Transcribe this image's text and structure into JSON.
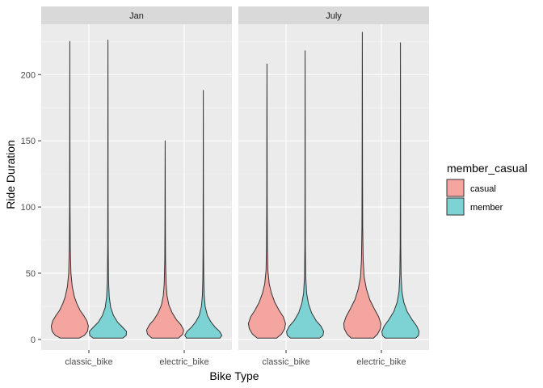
{
  "chart_data": {
    "type": "violin",
    "xlabel": "Bike Type",
    "ylabel": "Ride Duration",
    "ylim": [
      -8,
      238
    ],
    "yticks": [
      0,
      50,
      100,
      150,
      200
    ],
    "categories": [
      "classic_bike",
      "electric_bike"
    ],
    "facets": [
      "Jan",
      "July"
    ],
    "legend": {
      "title": "member_casual",
      "position": "right",
      "entries": [
        {
          "name": "casual",
          "color": "#F4A5A0"
        },
        {
          "name": "member",
          "color": "#7DD3D3"
        }
      ]
    },
    "grid": true,
    "series": [
      {
        "name": "casual",
        "color": "#F4A5A0"
      },
      {
        "name": "member",
        "color": "#7DD3D3"
      }
    ],
    "violins": [
      {
        "facet": "Jan",
        "category": "classic_bike",
        "group": "casual",
        "max": 225,
        "profile": [
          [
            1,
            0.5
          ],
          [
            3,
            0.78
          ],
          [
            6,
            0.95
          ],
          [
            10,
            1.0
          ],
          [
            14,
            0.92
          ],
          [
            18,
            0.75
          ],
          [
            22,
            0.55
          ],
          [
            27,
            0.38
          ],
          [
            32,
            0.25
          ],
          [
            40,
            0.13
          ],
          [
            50,
            0.06
          ],
          [
            70,
            0.025
          ],
          [
            100,
            0.012
          ],
          [
            150,
            0.007
          ],
          [
            225,
            0.0
          ]
        ]
      },
      {
        "facet": "Jan",
        "category": "classic_bike",
        "group": "member",
        "max": 226,
        "profile": [
          [
            1,
            0.8
          ],
          [
            3,
            0.98
          ],
          [
            6,
            1.0
          ],
          [
            9,
            0.8
          ],
          [
            13,
            0.52
          ],
          [
            18,
            0.3
          ],
          [
            24,
            0.15
          ],
          [
            32,
            0.07
          ],
          [
            45,
            0.03
          ],
          [
            70,
            0.014
          ],
          [
            110,
            0.008
          ],
          [
            160,
            0.005
          ],
          [
            226,
            0.0
          ]
        ]
      },
      {
        "facet": "Jan",
        "category": "electric_bike",
        "group": "casual",
        "max": 150,
        "profile": [
          [
            1,
            0.72
          ],
          [
            4,
            0.95
          ],
          [
            7,
            1.0
          ],
          [
            11,
            0.85
          ],
          [
            15,
            0.6
          ],
          [
            20,
            0.38
          ],
          [
            26,
            0.2
          ],
          [
            33,
            0.1
          ],
          [
            42,
            0.05
          ],
          [
            60,
            0.02
          ],
          [
            90,
            0.01
          ],
          [
            150,
            0.0
          ]
        ]
      },
      {
        "facet": "Jan",
        "category": "electric_bike",
        "group": "member",
        "max": 188,
        "profile": [
          [
            1,
            0.9
          ],
          [
            3,
            1.0
          ],
          [
            6,
            0.88
          ],
          [
            9,
            0.65
          ],
          [
            13,
            0.42
          ],
          [
            18,
            0.22
          ],
          [
            25,
            0.1
          ],
          [
            33,
            0.05
          ],
          [
            45,
            0.025
          ],
          [
            70,
            0.012
          ],
          [
            110,
            0.007
          ],
          [
            188,
            0.0
          ]
        ]
      },
      {
        "facet": "July",
        "category": "classic_bike",
        "group": "casual",
        "max": 208,
        "profile": [
          [
            1,
            0.52
          ],
          [
            4,
            0.78
          ],
          [
            8,
            0.95
          ],
          [
            12,
            1.0
          ],
          [
            17,
            0.88
          ],
          [
            22,
            0.65
          ],
          [
            28,
            0.42
          ],
          [
            35,
            0.24
          ],
          [
            42,
            0.12
          ],
          [
            52,
            0.05
          ],
          [
            70,
            0.022
          ],
          [
            110,
            0.01
          ],
          [
            160,
            0.006
          ],
          [
            208,
            0.0
          ]
        ]
      },
      {
        "facet": "July",
        "category": "classic_bike",
        "group": "member",
        "max": 218,
        "profile": [
          [
            1,
            0.78
          ],
          [
            3,
            0.96
          ],
          [
            6,
            1.0
          ],
          [
            10,
            0.85
          ],
          [
            14,
            0.6
          ],
          [
            20,
            0.35
          ],
          [
            27,
            0.18
          ],
          [
            35,
            0.08
          ],
          [
            48,
            0.03
          ],
          [
            70,
            0.014
          ],
          [
            110,
            0.008
          ],
          [
            160,
            0.005
          ],
          [
            218,
            0.0
          ]
        ]
      },
      {
        "facet": "July",
        "category": "electric_bike",
        "group": "casual",
        "max": 232,
        "profile": [
          [
            1,
            0.6
          ],
          [
            4,
            0.82
          ],
          [
            8,
            0.97
          ],
          [
            12,
            1.0
          ],
          [
            17,
            0.88
          ],
          [
            23,
            0.65
          ],
          [
            30,
            0.4
          ],
          [
            38,
            0.22
          ],
          [
            47,
            0.1
          ],
          [
            60,
            0.045
          ],
          [
            85,
            0.02
          ],
          [
            130,
            0.01
          ],
          [
            180,
            0.006
          ],
          [
            232,
            0.0
          ]
        ]
      },
      {
        "facet": "July",
        "category": "electric_bike",
        "group": "member",
        "max": 224,
        "profile": [
          [
            1,
            0.82
          ],
          [
            3,
            0.97
          ],
          [
            6,
            1.0
          ],
          [
            10,
            0.88
          ],
          [
            15,
            0.62
          ],
          [
            21,
            0.36
          ],
          [
            28,
            0.18
          ],
          [
            36,
            0.08
          ],
          [
            48,
            0.035
          ],
          [
            70,
            0.015
          ],
          [
            110,
            0.008
          ],
          [
            160,
            0.005
          ],
          [
            224,
            0.0
          ]
        ]
      }
    ]
  }
}
